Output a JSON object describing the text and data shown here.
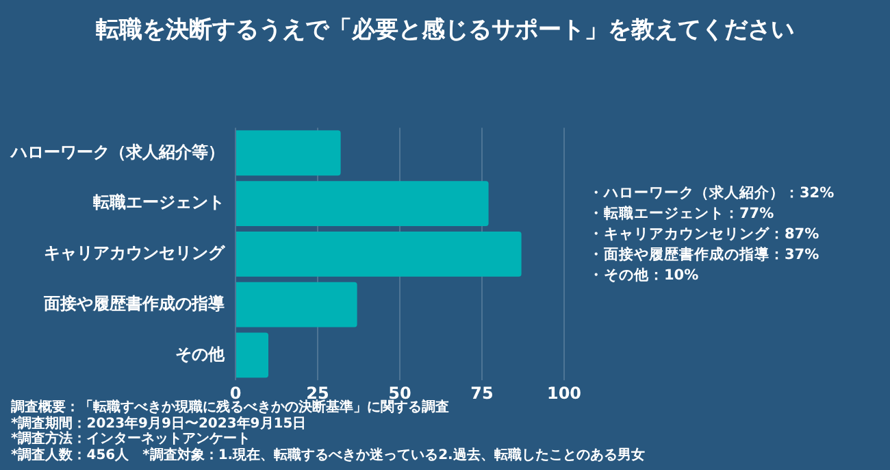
{
  "chart_data": {
    "type": "bar",
    "orientation": "horizontal",
    "title": "転職を決断するうえで「必要と感じるサポート」を教えてください",
    "categories": [
      "ハローワーク（求人紹介等）",
      "転職エージェント",
      "キャリアカウンセリング",
      "面接や履歴書作成の指導",
      "その他"
    ],
    "values": [
      32,
      77,
      87,
      37,
      10
    ],
    "color": "#00b2b5",
    "xlim": [
      0,
      100
    ],
    "xticks": [
      0,
      25,
      50,
      75,
      100
    ],
    "grid": "x",
    "annotations": [
      "・ハローワーク（求人紹介）：32%",
      "・転職エージェント：77%",
      "・キャリアカウンセリング：87%",
      "・面接や履歴書作成の指導：37%",
      "・その他：10%",
      "調査概要：「転職すべきか現職に残るべきかの決断基準」に関する調査",
      "*調査期間：2023年9月9日〜2023年9月15日",
      "*調査方法：インターネットアンケート",
      "*調査人数：456人　*調査対象：1.現在、転職するべきか迷っている2.過去、転職したことのある男女"
    ]
  }
}
